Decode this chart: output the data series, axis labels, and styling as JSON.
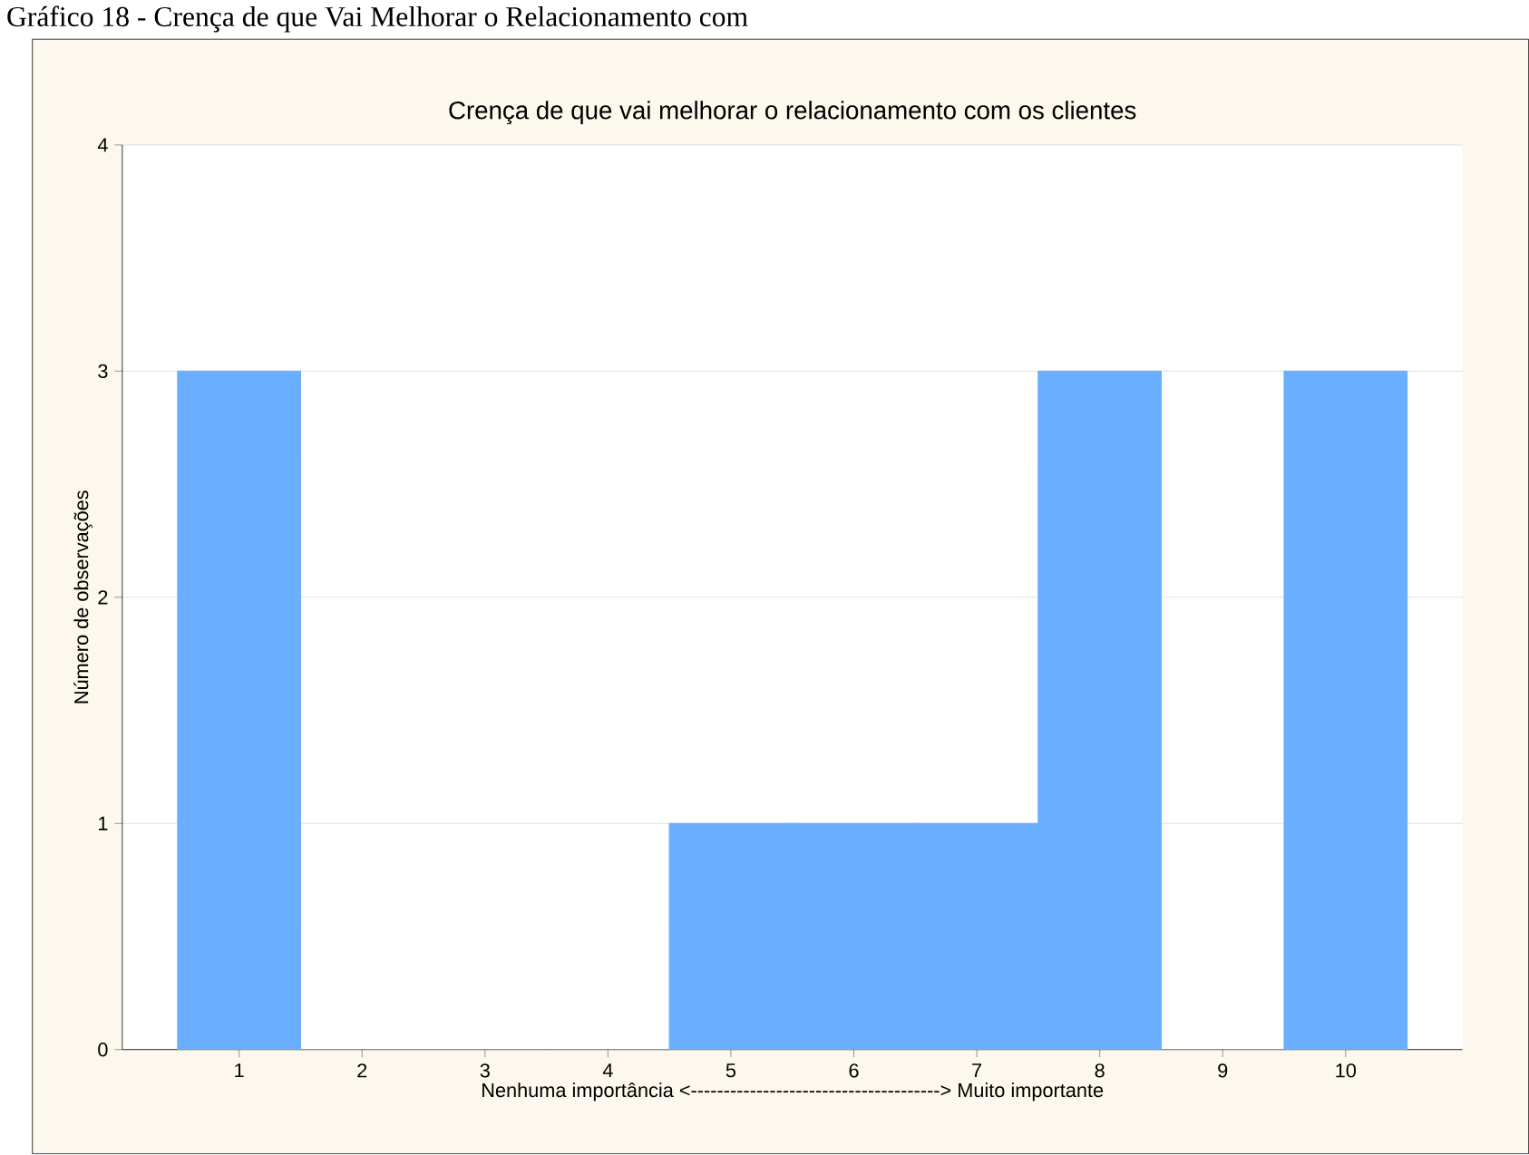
{
  "chart_data": {
    "type": "bar",
    "title": "Crença de que vai melhorar o relacionamento com os clientes",
    "annotations": [
      "Gráfico 18 - Crença de que Vai Melhorar o Relacionamento com"
    ],
    "xlabel": "Nenhuma importância <--------------------------------------> Muito importante",
    "ylabel": "Número de observações",
    "categories": [
      "1",
      "2",
      "3",
      "4",
      "5",
      "6",
      "7",
      "8",
      "9",
      "10"
    ],
    "values": [
      3,
      0,
      0,
      0,
      1,
      1,
      1,
      3,
      0,
      3
    ],
    "color": "#6aafff",
    "ylim": [
      0,
      4
    ],
    "yticks": [
      0,
      1,
      2,
      3,
      4
    ],
    "grid": "y"
  }
}
